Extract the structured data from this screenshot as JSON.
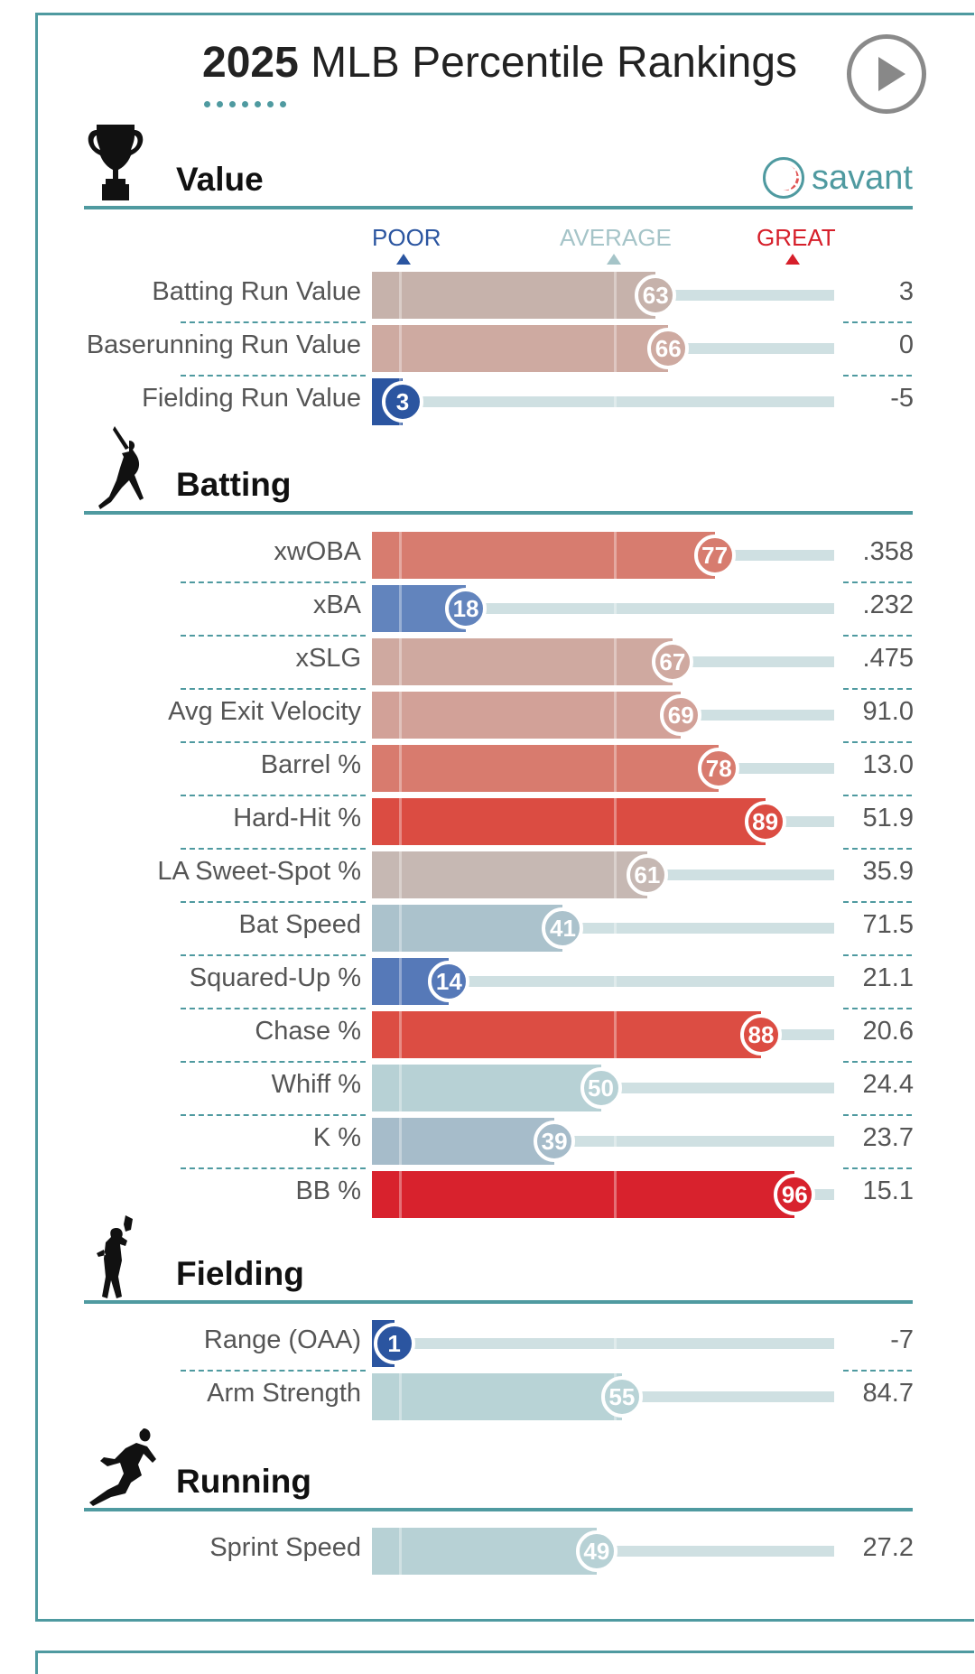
{
  "header": {
    "year": "2025",
    "title": "MLB Percentile Rankings"
  },
  "scale": {
    "poor": "POOR",
    "average": "AVERAGE",
    "great": "GREAT"
  },
  "brand": {
    "name": "savant"
  },
  "colors": {
    "accent": "#4f9aa0",
    "poor": "#2b55a0",
    "average": "#a5c4c8",
    "great": "#d61f2a"
  },
  "sections": [
    {
      "label": "Value",
      "icon": "trophy-icon",
      "rows": [
        {
          "name": "Batting Run Value",
          "percentile": 63,
          "value": "3",
          "color": "#c6b2ab"
        },
        {
          "name": "Baserunning Run Value",
          "percentile": 66,
          "value": "0",
          "color": "#ceaaa1"
        },
        {
          "name": "Fielding Run Value",
          "percentile": 3,
          "value": "-5",
          "color": "#2b55a0"
        }
      ]
    },
    {
      "label": "Batting",
      "icon": "batter-icon",
      "rows": [
        {
          "name": "xwOBA",
          "percentile": 77,
          "value": ".358",
          "color": "#d77c6f"
        },
        {
          "name": "xBA",
          "percentile": 18,
          "value": ".232",
          "color": "#6284bd"
        },
        {
          "name": "xSLG",
          "percentile": 67,
          "value": ".475",
          "color": "#cfa9a0"
        },
        {
          "name": "Avg Exit Velocity",
          "percentile": 69,
          "value": "91.0",
          "color": "#d2a198"
        },
        {
          "name": "Barrel %",
          "percentile": 78,
          "value": "13.0",
          "color": "#d87b6e"
        },
        {
          "name": "Hard-Hit %",
          "percentile": 89,
          "value": "51.9",
          "color": "#db4c42"
        },
        {
          "name": "LA Sweet-Spot %",
          "percentile": 61,
          "value": "35.9",
          "color": "#c6b8b3"
        },
        {
          "name": "Bat Speed",
          "percentile": 41,
          "value": "71.5",
          "color": "#abc2cc"
        },
        {
          "name": "Squared-Up %",
          "percentile": 14,
          "value": "21.1",
          "color": "#5679b8"
        },
        {
          "name": "Chase %",
          "percentile": 88,
          "value": "20.6",
          "color": "#dc4d43"
        },
        {
          "name": "Whiff %",
          "percentile": 50,
          "value": "24.4",
          "color": "#b7d1d5"
        },
        {
          "name": "K %",
          "percentile": 39,
          "value": "23.7",
          "color": "#a6bcca"
        },
        {
          "name": "BB %",
          "percentile": 96,
          "value": "15.1",
          "color": "#d8222d"
        }
      ]
    },
    {
      "label": "Fielding",
      "icon": "fielder-icon",
      "rows": [
        {
          "name": "Range (OAA)",
          "percentile": 1,
          "value": "-7",
          "color": "#2b55a0"
        },
        {
          "name": "Arm Strength",
          "percentile": 55,
          "value": "84.7",
          "color": "#b8d3d6"
        }
      ]
    },
    {
      "label": "Running",
      "icon": "runner-icon",
      "rows": [
        {
          "name": "Sprint Speed",
          "percentile": 49,
          "value": "27.2",
          "color": "#b7d1d5"
        }
      ]
    }
  ]
}
